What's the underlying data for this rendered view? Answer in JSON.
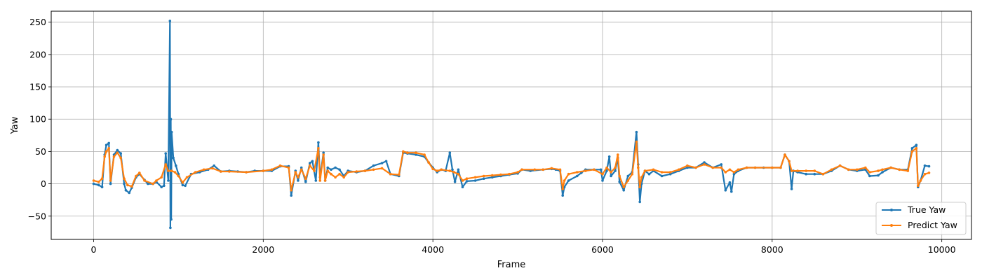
{
  "chart_data": {
    "type": "line",
    "title": "",
    "xlabel": "Frame",
    "ylabel": "Yaw",
    "xlim": [
      -500,
      10350
    ],
    "ylim": [
      -86,
      267
    ],
    "xticks": [
      0,
      2000,
      4000,
      6000,
      8000,
      10000
    ],
    "yticks": [
      -50,
      0,
      50,
      100,
      150,
      200,
      250
    ],
    "grid": true,
    "legend": {
      "position": "lower-right"
    },
    "series": [
      {
        "name": "True Yaw",
        "color": "#1f77b4",
        "marker": "point",
        "points": [
          [
            0,
            0
          ],
          [
            60,
            -2
          ],
          [
            100,
            -5
          ],
          [
            130,
            45
          ],
          [
            150,
            60
          ],
          [
            180,
            63
          ],
          [
            200,
            0
          ],
          [
            240,
            45
          ],
          [
            280,
            52
          ],
          [
            320,
            47
          ],
          [
            360,
            0
          ],
          [
            380,
            -10
          ],
          [
            420,
            -14
          ],
          [
            450,
            -6
          ],
          [
            500,
            10
          ],
          [
            540,
            15
          ],
          [
            600,
            6
          ],
          [
            640,
            0
          ],
          [
            700,
            0
          ],
          [
            740,
            3
          ],
          [
            800,
            -5
          ],
          [
            830,
            -3
          ],
          [
            850,
            47
          ],
          [
            880,
            5
          ],
          [
            900,
            252
          ],
          [
            905,
            -68
          ],
          [
            910,
            100
          ],
          [
            915,
            -55
          ],
          [
            920,
            80
          ],
          [
            940,
            40
          ],
          [
            970,
            28
          ],
          [
            1000,
            15
          ],
          [
            1050,
            -2
          ],
          [
            1080,
            -3
          ],
          [
            1150,
            15
          ],
          [
            1250,
            18
          ],
          [
            1350,
            22
          ],
          [
            1420,
            28
          ],
          [
            1500,
            19
          ],
          [
            1600,
            20
          ],
          [
            1700,
            19
          ],
          [
            1800,
            18
          ],
          [
            1900,
            20
          ],
          [
            2000,
            20
          ],
          [
            2100,
            20
          ],
          [
            2200,
            27
          ],
          [
            2300,
            27
          ],
          [
            2330,
            -18
          ],
          [
            2380,
            20
          ],
          [
            2410,
            5
          ],
          [
            2450,
            25
          ],
          [
            2500,
            3
          ],
          [
            2550,
            32
          ],
          [
            2580,
            35
          ],
          [
            2620,
            5
          ],
          [
            2650,
            64
          ],
          [
            2670,
            10
          ],
          [
            2710,
            48
          ],
          [
            2730,
            5
          ],
          [
            2760,
            25
          ],
          [
            2800,
            22
          ],
          [
            2850,
            25
          ],
          [
            2900,
            22
          ],
          [
            2950,
            12
          ],
          [
            3000,
            20
          ],
          [
            3100,
            18
          ],
          [
            3200,
            20
          ],
          [
            3300,
            28
          ],
          [
            3400,
            32
          ],
          [
            3450,
            35
          ],
          [
            3500,
            15
          ],
          [
            3600,
            12
          ],
          [
            3650,
            48
          ],
          [
            3700,
            47
          ],
          [
            3800,
            45
          ],
          [
            3900,
            42
          ],
          [
            3950,
            33
          ],
          [
            4000,
            25
          ],
          [
            4050,
            18
          ],
          [
            4100,
            22
          ],
          [
            4150,
            20
          ],
          [
            4200,
            48
          ],
          [
            4230,
            22
          ],
          [
            4260,
            3
          ],
          [
            4300,
            22
          ],
          [
            4350,
            -5
          ],
          [
            4400,
            4
          ],
          [
            4500,
            5
          ],
          [
            4600,
            8
          ],
          [
            4700,
            10
          ],
          [
            4800,
            12
          ],
          [
            4900,
            14
          ],
          [
            5000,
            16
          ],
          [
            5050,
            22
          ],
          [
            5150,
            20
          ],
          [
            5300,
            22
          ],
          [
            5400,
            23
          ],
          [
            5450,
            22
          ],
          [
            5500,
            20
          ],
          [
            5530,
            -18
          ],
          [
            5550,
            -5
          ],
          [
            5600,
            5
          ],
          [
            5700,
            12
          ],
          [
            5750,
            17
          ],
          [
            5800,
            22
          ],
          [
            5900,
            22
          ],
          [
            5980,
            22
          ],
          [
            6000,
            5
          ],
          [
            6050,
            20
          ],
          [
            6080,
            42
          ],
          [
            6100,
            12
          ],
          [
            6150,
            20
          ],
          [
            6180,
            40
          ],
          [
            6200,
            3
          ],
          [
            6250,
            -10
          ],
          [
            6300,
            12
          ],
          [
            6350,
            18
          ],
          [
            6400,
            80
          ],
          [
            6420,
            30
          ],
          [
            6440,
            -28
          ],
          [
            6460,
            0
          ],
          [
            6500,
            20
          ],
          [
            6550,
            15
          ],
          [
            6600,
            20
          ],
          [
            6700,
            12
          ],
          [
            6800,
            15
          ],
          [
            6900,
            20
          ],
          [
            7000,
            25
          ],
          [
            7100,
            25
          ],
          [
            7200,
            33
          ],
          [
            7300,
            25
          ],
          [
            7400,
            30
          ],
          [
            7450,
            -10
          ],
          [
            7500,
            2
          ],
          [
            7520,
            -12
          ],
          [
            7550,
            15
          ],
          [
            7600,
            20
          ],
          [
            7700,
            25
          ],
          [
            7800,
            25
          ],
          [
            7900,
            25
          ],
          [
            8000,
            25
          ],
          [
            8100,
            25
          ],
          [
            8150,
            45
          ],
          [
            8200,
            35
          ],
          [
            8230,
            -8
          ],
          [
            8250,
            20
          ],
          [
            8300,
            18
          ],
          [
            8400,
            15
          ],
          [
            8500,
            15
          ],
          [
            8600,
            15
          ],
          [
            8700,
            20
          ],
          [
            8800,
            28
          ],
          [
            8900,
            22
          ],
          [
            9000,
            20
          ],
          [
            9100,
            22
          ],
          [
            9150,
            12
          ],
          [
            9250,
            13
          ],
          [
            9300,
            18
          ],
          [
            9400,
            25
          ],
          [
            9500,
            22
          ],
          [
            9600,
            22
          ],
          [
            9650,
            55
          ],
          [
            9700,
            60
          ],
          [
            9720,
            -5
          ],
          [
            9750,
            5
          ],
          [
            9800,
            28
          ],
          [
            9850,
            27
          ]
        ]
      },
      {
        "name": "Predict Yaw",
        "color": "#ff7f0e",
        "marker": "point",
        "points": [
          [
            0,
            5
          ],
          [
            60,
            3
          ],
          [
            100,
            8
          ],
          [
            130,
            42
          ],
          [
            150,
            50
          ],
          [
            180,
            55
          ],
          [
            200,
            5
          ],
          [
            240,
            42
          ],
          [
            280,
            48
          ],
          [
            320,
            40
          ],
          [
            360,
            8
          ],
          [
            400,
            -2
          ],
          [
            450,
            -4
          ],
          [
            500,
            12
          ],
          [
            540,
            17
          ],
          [
            600,
            5
          ],
          [
            700,
            0
          ],
          [
            740,
            5
          ],
          [
            800,
            10
          ],
          [
            850,
            30
          ],
          [
            880,
            20
          ],
          [
            920,
            20
          ],
          [
            960,
            18
          ],
          [
            1000,
            12
          ],
          [
            1050,
            2
          ],
          [
            1100,
            10
          ],
          [
            1200,
            18
          ],
          [
            1300,
            22
          ],
          [
            1400,
            24
          ],
          [
            1500,
            19
          ],
          [
            1600,
            19
          ],
          [
            1800,
            18
          ],
          [
            2000,
            20
          ],
          [
            2100,
            22
          ],
          [
            2200,
            28
          ],
          [
            2300,
            25
          ],
          [
            2330,
            -10
          ],
          [
            2380,
            18
          ],
          [
            2410,
            10
          ],
          [
            2450,
            22
          ],
          [
            2500,
            8
          ],
          [
            2550,
            28
          ],
          [
            2600,
            20
          ],
          [
            2650,
            55
          ],
          [
            2670,
            5
          ],
          [
            2710,
            45
          ],
          [
            2730,
            5
          ],
          [
            2760,
            20
          ],
          [
            2800,
            15
          ],
          [
            2850,
            10
          ],
          [
            2900,
            15
          ],
          [
            2950,
            10
          ],
          [
            3000,
            18
          ],
          [
            3100,
            19
          ],
          [
            3200,
            20
          ],
          [
            3300,
            22
          ],
          [
            3400,
            24
          ],
          [
            3500,
            15
          ],
          [
            3600,
            14
          ],
          [
            3650,
            50
          ],
          [
            3700,
            48
          ],
          [
            3800,
            48
          ],
          [
            3900,
            45
          ],
          [
            3950,
            33
          ],
          [
            4000,
            23
          ],
          [
            4050,
            20
          ],
          [
            4100,
            22
          ],
          [
            4200,
            20
          ],
          [
            4250,
            18
          ],
          [
            4300,
            15
          ],
          [
            4350,
            5
          ],
          [
            4400,
            8
          ],
          [
            4500,
            10
          ],
          [
            4600,
            12
          ],
          [
            4700,
            13
          ],
          [
            4800,
            14
          ],
          [
            4900,
            15
          ],
          [
            5000,
            18
          ],
          [
            5050,
            22
          ],
          [
            5200,
            22
          ],
          [
            5300,
            22
          ],
          [
            5400,
            24
          ],
          [
            5500,
            22
          ],
          [
            5530,
            -8
          ],
          [
            5550,
            5
          ],
          [
            5600,
            15
          ],
          [
            5700,
            18
          ],
          [
            5800,
            20
          ],
          [
            5900,
            22
          ],
          [
            6000,
            15
          ],
          [
            6050,
            25
          ],
          [
            6100,
            18
          ],
          [
            6150,
            25
          ],
          [
            6180,
            45
          ],
          [
            6200,
            12
          ],
          [
            6250,
            -5
          ],
          [
            6300,
            5
          ],
          [
            6350,
            15
          ],
          [
            6400,
            65
          ],
          [
            6420,
            25
          ],
          [
            6440,
            -5
          ],
          [
            6460,
            10
          ],
          [
            6500,
            20
          ],
          [
            6600,
            22
          ],
          [
            6700,
            18
          ],
          [
            6800,
            18
          ],
          [
            6900,
            22
          ],
          [
            7000,
            28
          ],
          [
            7100,
            25
          ],
          [
            7200,
            30
          ],
          [
            7300,
            25
          ],
          [
            7400,
            25
          ],
          [
            7450,
            18
          ],
          [
            7500,
            22
          ],
          [
            7550,
            18
          ],
          [
            7600,
            22
          ],
          [
            7700,
            25
          ],
          [
            7800,
            25
          ],
          [
            8000,
            25
          ],
          [
            8100,
            25
          ],
          [
            8150,
            45
          ],
          [
            8200,
            35
          ],
          [
            8230,
            20
          ],
          [
            8300,
            20
          ],
          [
            8400,
            20
          ],
          [
            8500,
            20
          ],
          [
            8600,
            15
          ],
          [
            8700,
            22
          ],
          [
            8800,
            28
          ],
          [
            8900,
            22
          ],
          [
            9000,
            22
          ],
          [
            9100,
            25
          ],
          [
            9150,
            18
          ],
          [
            9250,
            20
          ],
          [
            9300,
            22
          ],
          [
            9400,
            25
          ],
          [
            9500,
            22
          ],
          [
            9600,
            20
          ],
          [
            9650,
            50
          ],
          [
            9700,
            55
          ],
          [
            9720,
            -3
          ],
          [
            9750,
            5
          ],
          [
            9800,
            15
          ],
          [
            9850,
            17
          ]
        ]
      }
    ]
  }
}
